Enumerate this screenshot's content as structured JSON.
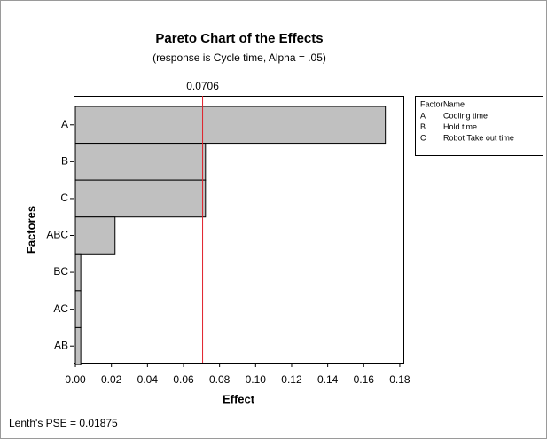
{
  "chart_data": {
    "type": "bar",
    "orientation": "horizontal",
    "title": "Pareto Chart of the Effects",
    "subtitle": "(response is Cycle time, Alpha = .05)",
    "xlabel": "Effect",
    "ylabel": "Factores",
    "categories": [
      "A",
      "B",
      "C",
      "ABC",
      "BC",
      "AC",
      "AB"
    ],
    "values": [
      0.172,
      0.0722,
      0.0722,
      0.022,
      0.003,
      0.003,
      0.003
    ],
    "color": "#c0c0c0",
    "reference_line": 0.0706,
    "reference_color": "#e0202a",
    "xlim": [
      -0.001,
      0.182
    ],
    "xticks": [
      {
        "value": 0,
        "label": "0.00"
      },
      {
        "value": 0.02,
        "label": "0.02"
      },
      {
        "value": 0.04,
        "label": "0.04"
      },
      {
        "value": 0.06,
        "label": "0.06"
      },
      {
        "value": 0.08,
        "label": "0.08"
      },
      {
        "value": 0.1,
        "label": "0.10"
      },
      {
        "value": 0.12,
        "label": "0.12"
      },
      {
        "value": 0.14,
        "label": "0.14"
      },
      {
        "value": 0.16,
        "label": "0.16"
      },
      {
        "value": 0.18,
        "label": "0.18"
      }
    ],
    "legend": {
      "header": [
        "Factor",
        "Name"
      ],
      "rows": [
        [
          "A",
          "Cooling time"
        ],
        [
          "B",
          "Hold time"
        ],
        [
          "C",
          "Robot Take out time"
        ]
      ]
    },
    "footnote": "Lenth's PSE = 0.01875"
  }
}
